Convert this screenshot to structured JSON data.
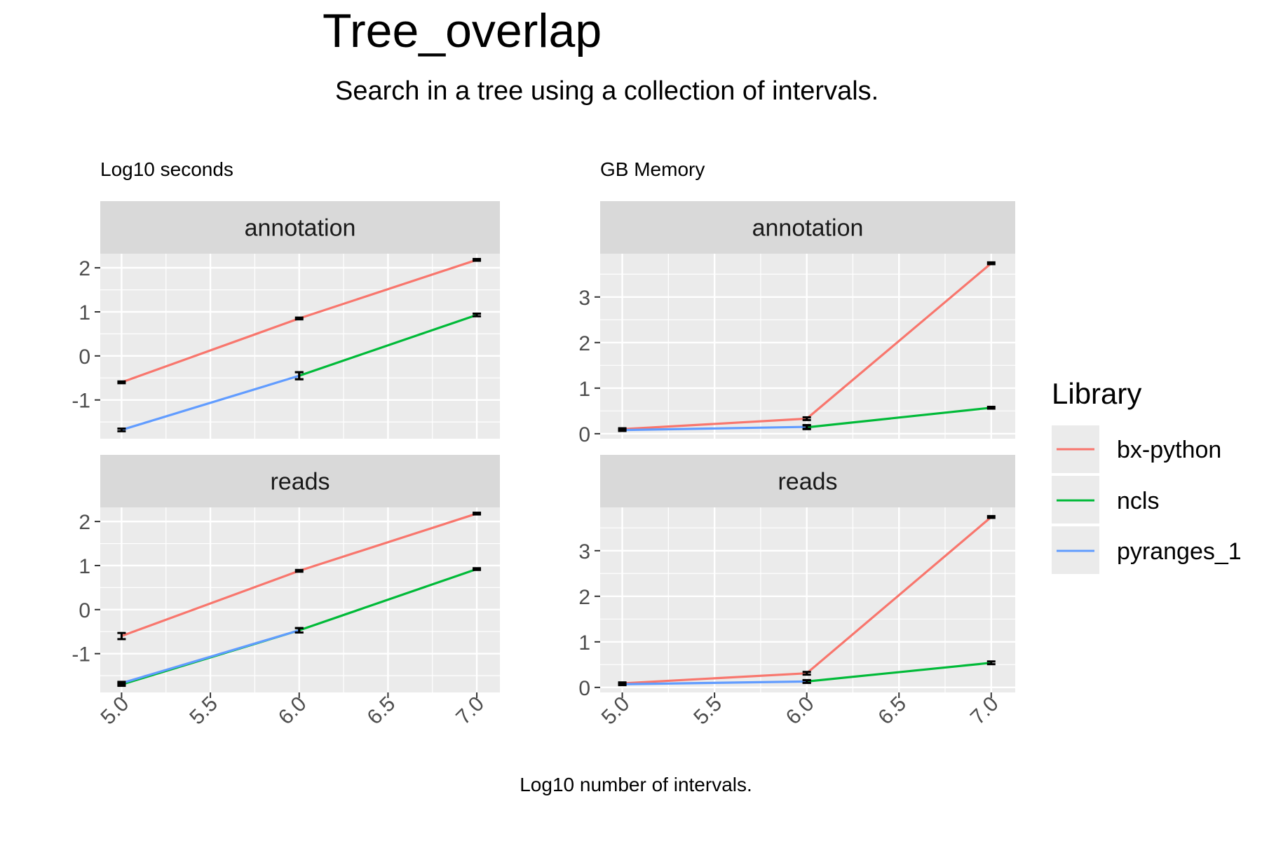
{
  "title": "Tree_overlap",
  "subtitle": "Search in a tree using a collection of intervals.",
  "xlabel": "Log10 number of intervals.",
  "legend": {
    "title": "Library",
    "entries": [
      {
        "name": "bx-python",
        "color": "#F8766D"
      },
      {
        "name": "ncls",
        "color": "#00BA38"
      },
      {
        "name": "pyranges_1",
        "color": "#619CFF"
      }
    ],
    "position": "right"
  },
  "colors": {
    "bx-python": "#F8766D",
    "ncls": "#00BA38",
    "pyranges_1": "#619CFF",
    "panel_bg": "#EBEBEB",
    "strip_bg": "#D9D9D9",
    "grid": "#FFFFFF",
    "errorbar": "#000000"
  },
  "chart_data": [
    {
      "type": "line",
      "column_title": "Log10 seconds",
      "facet": "annotation",
      "x_ticks": [
        "5.0",
        "5.5",
        "6.0",
        "6.5",
        "7.0"
      ],
      "y_ticks": [
        "2",
        "1",
        "0",
        "-1"
      ],
      "xlim": [
        4.88,
        7.13
      ],
      "ylim": [
        -1.88,
        2.32
      ],
      "series": [
        {
          "name": "bx-python",
          "x": [
            5,
            6,
            7
          ],
          "y": [
            -0.6,
            0.85,
            2.18
          ],
          "err": [
            0.02,
            0.02,
            0.02
          ]
        },
        {
          "name": "ncls",
          "x": [
            6,
            7
          ],
          "y": [
            -0.45,
            0.93
          ],
          "err": [
            0.08,
            0.03
          ]
        },
        {
          "name": "pyranges_1",
          "x": [
            5,
            6
          ],
          "y": [
            -1.68,
            -0.45
          ],
          "err": [
            0.03,
            0.08
          ]
        }
      ]
    },
    {
      "type": "line",
      "column_title": "Log10 seconds",
      "facet": "reads",
      "x_ticks": [
        "5.0",
        "5.5",
        "6.0",
        "6.5",
        "7.0"
      ],
      "y_ticks": [
        "2",
        "1",
        "0",
        "-1"
      ],
      "xlim": [
        4.88,
        7.13
      ],
      "ylim": [
        -1.88,
        2.32
      ],
      "series": [
        {
          "name": "bx-python",
          "x": [
            5,
            6,
            7
          ],
          "y": [
            -0.6,
            0.88,
            2.18
          ],
          "err": [
            0.07,
            0.02,
            0.02
          ]
        },
        {
          "name": "ncls",
          "x": [
            5,
            6,
            7
          ],
          "y": [
            -1.7,
            -0.47,
            0.92
          ],
          "err": [
            0.03,
            0.05,
            0.02
          ]
        },
        {
          "name": "pyranges_1",
          "x": [
            5,
            6
          ],
          "y": [
            -1.67,
            -0.47
          ],
          "err": [
            0.03,
            0.05
          ]
        }
      ]
    },
    {
      "type": "line",
      "column_title": "GB Memory",
      "facet": "annotation",
      "x_ticks": [
        "5.0",
        "5.5",
        "6.0",
        "6.5",
        "7.0"
      ],
      "y_ticks": [
        "3",
        "2",
        "1",
        "0"
      ],
      "xlim": [
        4.88,
        7.13
      ],
      "ylim": [
        -0.11,
        3.95
      ],
      "series": [
        {
          "name": "bx-python",
          "x": [
            5,
            6,
            7
          ],
          "y": [
            0.1,
            0.33,
            3.74
          ],
          "err": [
            0.02,
            0.03,
            0.02
          ]
        },
        {
          "name": "ncls",
          "x": [
            6,
            7
          ],
          "y": [
            0.14,
            0.57
          ],
          "err": [
            0.04,
            0.02
          ]
        },
        {
          "name": "pyranges_1",
          "x": [
            5,
            6
          ],
          "y": [
            0.08,
            0.15
          ],
          "err": [
            0.02,
            0.04
          ]
        }
      ]
    },
    {
      "type": "line",
      "column_title": "GB Memory",
      "facet": "reads",
      "x_ticks": [
        "5.0",
        "5.5",
        "6.0",
        "6.5",
        "7.0"
      ],
      "y_ticks": [
        "3",
        "2",
        "1",
        "0"
      ],
      "xlim": [
        4.88,
        7.13
      ],
      "ylim": [
        -0.11,
        3.95
      ],
      "series": [
        {
          "name": "bx-python",
          "x": [
            5,
            6,
            7
          ],
          "y": [
            0.09,
            0.31,
            3.74
          ],
          "err": [
            0.02,
            0.03,
            0.02
          ]
        },
        {
          "name": "ncls",
          "x": [
            6,
            7
          ],
          "y": [
            0.13,
            0.54
          ],
          "err": [
            0.03,
            0.03
          ]
        },
        {
          "name": "pyranges_1",
          "x": [
            5,
            6
          ],
          "y": [
            0.07,
            0.13
          ],
          "err": [
            0.02,
            0.03
          ]
        }
      ]
    }
  ]
}
